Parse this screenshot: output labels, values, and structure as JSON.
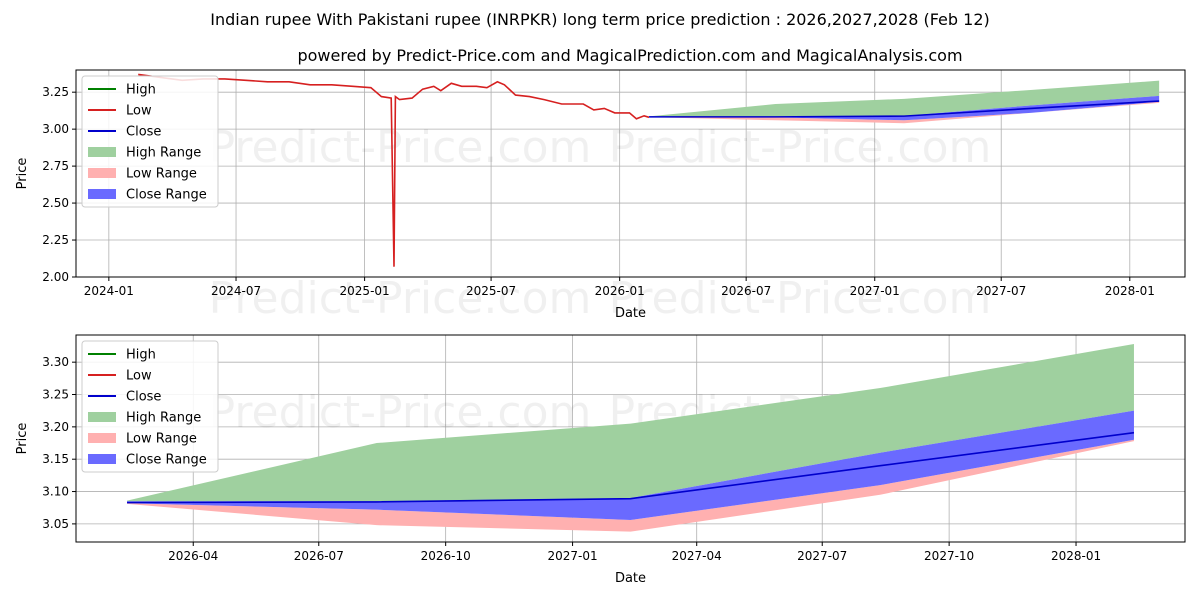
{
  "title": "Indian rupee With Pakistani rupee (INRPKR) long term price prediction : 2026,2027,2028 (Feb 12)",
  "subtitle": "powered by Predict-Price.com and MagicalPrediction.com and MagicalAnalysis.com",
  "watermark": "Predict-Price.com",
  "colors": {
    "high": "#008000",
    "low": "#d62020",
    "close": "#0000cc",
    "high_range": "#9fd09f",
    "low_range": "#ffb0b0",
    "close_range": "#6a6aff"
  },
  "chart_data": [
    {
      "type": "line",
      "id": "top",
      "xlabel": "Date",
      "ylabel": "Price",
      "ylim": [
        2.0,
        3.4
      ],
      "xlim": [
        "2023-11-15",
        "2028-03-20"
      ],
      "grid": true,
      "legend_position": "top-left",
      "xticks": [
        {
          "date": "2024-01-01",
          "label": "2024-01"
        },
        {
          "date": "2024-07-01",
          "label": "2024-07"
        },
        {
          "date": "2025-01-01",
          "label": "2025-01"
        },
        {
          "date": "2025-07-01",
          "label": "2025-07"
        },
        {
          "date": "2026-01-01",
          "label": "2026-01"
        },
        {
          "date": "2026-07-01",
          "label": "2026-07"
        },
        {
          "date": "2027-01-01",
          "label": "2027-01"
        },
        {
          "date": "2027-07-01",
          "label": "2027-07"
        },
        {
          "date": "2028-01-01",
          "label": "2028-01"
        }
      ],
      "yticks": [
        {
          "value": 2.0,
          "label": "2.00"
        },
        {
          "value": 2.25,
          "label": "2.25"
        },
        {
          "value": 2.5,
          "label": "2.50"
        },
        {
          "value": 2.75,
          "label": "2.75"
        },
        {
          "value": 3.0,
          "label": "3.00"
        },
        {
          "value": 3.25,
          "label": "3.25"
        }
      ],
      "legend": [
        "High",
        "Low",
        "Close",
        "High Range",
        "Low Range",
        "Close Range"
      ],
      "history": {
        "dates": [
          "2024-02-12",
          "2024-03-15",
          "2024-04-15",
          "2024-05-15",
          "2024-06-15",
          "2024-07-15",
          "2024-08-15",
          "2024-09-15",
          "2024-10-15",
          "2024-11-15",
          "2024-12-15",
          "2025-01-10",
          "2025-01-25",
          "2025-02-08",
          "2025-02-12",
          "2025-02-14",
          "2025-02-20",
          "2025-03-10",
          "2025-03-25",
          "2025-04-10",
          "2025-04-20",
          "2025-05-05",
          "2025-05-20",
          "2025-06-10",
          "2025-06-25",
          "2025-07-10",
          "2025-07-20",
          "2025-08-05",
          "2025-08-25",
          "2025-09-15",
          "2025-10-10",
          "2025-11-10",
          "2025-11-25",
          "2025-12-10",
          "2025-12-25",
          "2026-01-15",
          "2026-01-25",
          "2026-02-05",
          "2026-02-12"
        ],
        "values": [
          3.37,
          3.35,
          3.33,
          3.34,
          3.34,
          3.33,
          3.32,
          3.32,
          3.3,
          3.3,
          3.29,
          3.28,
          3.22,
          3.21,
          2.07,
          3.22,
          3.2,
          3.21,
          3.27,
          3.29,
          3.26,
          3.31,
          3.29,
          3.29,
          3.28,
          3.32,
          3.3,
          3.23,
          3.22,
          3.2,
          3.17,
          3.17,
          3.13,
          3.14,
          3.11,
          3.11,
          3.07,
          3.09,
          3.08
        ]
      },
      "forecast": {
        "dates": [
          "2026-02-12",
          "2026-08-12",
          "2027-02-12",
          "2027-08-12",
          "2028-02-12"
        ],
        "close": [
          3.083,
          3.083,
          3.088,
          3.14,
          3.19
        ],
        "close_hi": [
          3.084,
          3.084,
          3.09,
          3.16,
          3.225
        ],
        "close_lo": [
          3.082,
          3.08,
          3.06,
          3.11,
          3.185
        ],
        "high_hi": [
          3.086,
          3.17,
          3.205,
          3.265,
          3.328
        ],
        "low_lo": [
          3.081,
          3.06,
          3.04,
          3.11,
          3.178
        ]
      }
    },
    {
      "type": "line",
      "id": "bottom",
      "xlabel": "Date",
      "ylabel": "Price",
      "ylim": [
        3.022,
        3.342
      ],
      "xlim": [
        "2026-01-06",
        "2028-03-20"
      ],
      "grid": true,
      "legend_position": "top-left",
      "xticks": [
        {
          "date": "2026-04-01",
          "label": "2026-04"
        },
        {
          "date": "2026-07-01",
          "label": "2026-07"
        },
        {
          "date": "2026-10-01",
          "label": "2026-10"
        },
        {
          "date": "2027-01-01",
          "label": "2027-01"
        },
        {
          "date": "2027-04-01",
          "label": "2027-04"
        },
        {
          "date": "2027-07-01",
          "label": "2027-07"
        },
        {
          "date": "2027-10-01",
          "label": "2027-10"
        },
        {
          "date": "2028-01-01",
          "label": "2028-01"
        }
      ],
      "yticks": [
        {
          "value": 3.05,
          "label": "3.05"
        },
        {
          "value": 3.1,
          "label": "3.10"
        },
        {
          "value": 3.15,
          "label": "3.15"
        },
        {
          "value": 3.2,
          "label": "3.20"
        },
        {
          "value": 3.25,
          "label": "3.25"
        },
        {
          "value": 3.3,
          "label": "3.30"
        }
      ],
      "legend": [
        "High",
        "Low",
        "Close",
        "High Range",
        "Low Range",
        "Close Range"
      ],
      "forecast": {
        "dates": [
          "2026-02-12",
          "2026-08-12",
          "2027-02-12",
          "2027-08-12",
          "2028-02-12"
        ],
        "close": [
          3.083,
          3.084,
          3.089,
          3.14,
          3.191
        ],
        "close_hi": [
          3.085,
          3.085,
          3.09,
          3.16,
          3.225
        ],
        "close_lo": [
          3.082,
          3.072,
          3.056,
          3.11,
          3.18
        ],
        "high_hi": [
          3.086,
          3.175,
          3.205,
          3.26,
          3.328
        ],
        "low_lo": [
          3.081,
          3.048,
          3.038,
          3.095,
          3.178
        ]
      }
    }
  ]
}
